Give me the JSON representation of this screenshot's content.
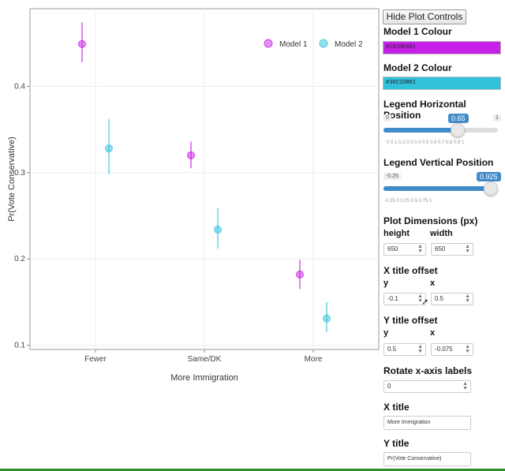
{
  "chart_data": {
    "type": "scatter",
    "xlabel": "More Immigration",
    "ylabel": "Pr(Vote Conservative)",
    "categories": [
      "Fewer",
      "Same/DK",
      "More"
    ],
    "ylim": [
      0.095,
      0.49
    ],
    "yticks": [
      "0.1",
      "0.2",
      "0.3",
      "0.4"
    ],
    "ytick_values": [
      0.1,
      0.2,
      0.3,
      0.4
    ],
    "legend_position": "top-right",
    "series": [
      {
        "name": "Model 1",
        "color": "#C520E6",
        "values": [
          0.449,
          0.32,
          0.182
        ],
        "lower": [
          0.428,
          0.305,
          0.165
        ],
        "upper": [
          0.474,
          0.336,
          0.199
        ]
      },
      {
        "name": "Model 2",
        "color": "#30C1DB",
        "values": [
          0.328,
          0.234,
          0.131
        ],
        "lower": [
          0.298,
          0.212,
          0.115
        ],
        "upper": [
          0.362,
          0.259,
          0.15
        ]
      }
    ]
  },
  "controls": {
    "toggle_button": "Hide Plot Controls",
    "model1": {
      "label": "Model 1 Colour",
      "value": "#C520E681"
    },
    "model2": {
      "label": "Model 2 Colour",
      "value": "#30C1DB81"
    },
    "legend_h": {
      "label": "Legend Horizontal Position",
      "min": "0",
      "max": "1",
      "value": "0.65",
      "fraction": 0.65,
      "ticks": "0   0.1  0.2  0.3  0.4  0.5  0.6  0.7  0.8  0.9  1"
    },
    "legend_v": {
      "label": "Legend Vertical Position",
      "min": "-0.25",
      "max": "1",
      "value": "0.925",
      "fraction": 0.94,
      "ticks": "-0.25      0      0.25      0.5      0.75      1"
    },
    "dims": {
      "label": "Plot Dimensions (px)",
      "height_label": "height",
      "width_label": "width",
      "height": "650",
      "width": "650"
    },
    "xoff": {
      "label": "X title offset",
      "y_label": "y",
      "x_label": "x",
      "y": "-0.1",
      "x": "0.5"
    },
    "yoff": {
      "label": "Y title offset",
      "y_label": "y",
      "x_label": "x",
      "y": "0.5",
      "x": "-0.075"
    },
    "rotate": {
      "label": "Rotate x-axis labels",
      "value": "0"
    },
    "xtitle": {
      "label": "X title",
      "value": "More Immigration"
    },
    "ytitle": {
      "label": "Y title",
      "value": "Pr(Vote Conservative)"
    }
  }
}
